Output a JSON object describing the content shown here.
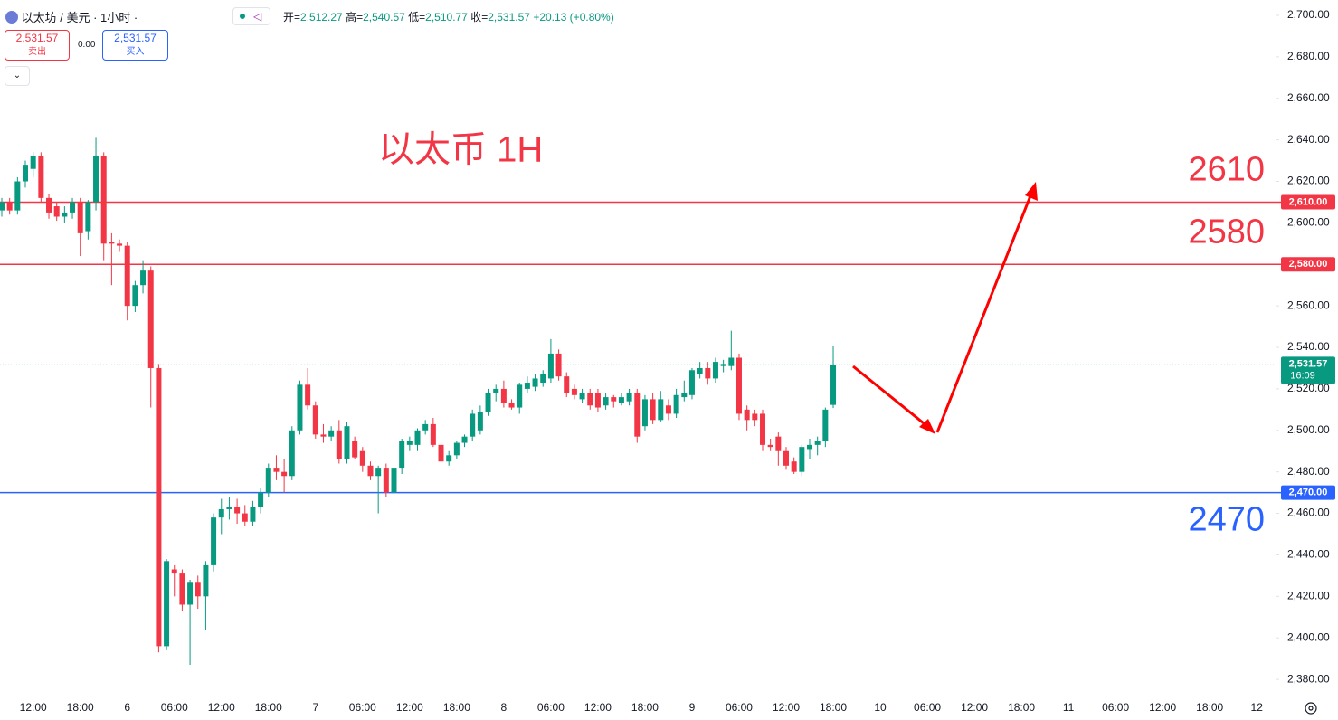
{
  "header": {
    "symbol": "以太坊 / 美元 · 1小时 ·",
    "ohlc": [
      {
        "label": "开=",
        "value": "2,512.27"
      },
      {
        "label": "高=",
        "value": "2,540.57"
      },
      {
        "label": "低=",
        "value": "2,510.77"
      },
      {
        "label": "收=",
        "value": "2,531.57"
      }
    ],
    "change": "+20.13 (+0.80%)",
    "sell": {
      "price": "2,531.57",
      "label": "卖出"
    },
    "spread": "0.00",
    "buy": {
      "price": "2,531.57",
      "label": "买入"
    }
  },
  "chart_data": {
    "type": "candlestick",
    "annotation": "以太币 1H",
    "up_color": "#089981",
    "down_color": "#f23645",
    "categories": [
      null,
      null,
      null,
      null,
      "12:00",
      null,
      null,
      null,
      null,
      null,
      "18:00",
      null,
      null,
      null,
      null,
      null,
      "6",
      null,
      null,
      null,
      null,
      null,
      "06:00",
      null,
      null,
      null,
      null,
      null,
      "12:00",
      null,
      null,
      null,
      null,
      null,
      "18:00",
      null,
      null,
      null,
      null,
      null,
      "7",
      null,
      null,
      null,
      null,
      null,
      "06:00",
      null,
      null,
      null,
      null,
      null,
      "12:00",
      null,
      null,
      null,
      null,
      null,
      "18:00",
      null,
      null,
      null,
      null,
      null,
      "8",
      null,
      null,
      null,
      null,
      null,
      "06:00",
      null,
      null,
      null,
      null,
      null,
      "12:00",
      null,
      null,
      null,
      null,
      null,
      "18:00",
      null,
      null,
      null,
      null,
      null,
      "9",
      null,
      null,
      null,
      null,
      null,
      "06:00",
      null,
      null,
      null,
      null,
      null,
      "12:00",
      null,
      null,
      null,
      null,
      null,
      "18:00",
      null,
      null,
      null,
      null,
      null,
      "10",
      null,
      null,
      null,
      null,
      null,
      "06:00",
      null,
      null,
      null,
      null,
      null,
      "12:00",
      null,
      null,
      null,
      null,
      null,
      "18:00",
      null,
      null,
      null,
      null,
      null,
      "11",
      null,
      null,
      null,
      null,
      null,
      "06:00",
      null,
      null,
      null,
      null,
      null,
      "12:00",
      null,
      null,
      null,
      null,
      null,
      "18:00",
      null,
      null,
      null,
      null,
      null,
      "12"
    ],
    "open": [
      2606,
      2610,
      2606,
      2620,
      2626,
      2632,
      2612,
      2608,
      2603,
      2605,
      2610,
      2596,
      2610,
      2632,
      2591,
      2590,
      2589,
      2560,
      2570,
      2577,
      2530,
      2396,
      2433,
      2431,
      2416,
      2427,
      2420,
      2435,
      2458,
      2462,
      2463,
      2460,
      2456,
      2463,
      2470,
      2482,
      2480,
      2478,
      2500,
      2522,
      2512,
      2498,
      2497,
      2500,
      2486,
      2495,
      2490,
      2483,
      2478,
      2482,
      2470,
      2482,
      2493,
      2493,
      2500,
      2503,
      2493,
      2485,
      2488,
      2494,
      2497,
      2500,
      2509,
      2518,
      2520,
      2513,
      2511,
      2520,
      2521,
      2523,
      2525,
      2537,
      2526,
      2520,
      2515,
      2518,
      2518,
      2512,
      2516,
      2513,
      2514,
      2518,
      2502,
      2515,
      2505,
      2512,
      2508,
      2516,
      2517,
      2527,
      2530,
      2525,
      2531,
      2531,
      2535,
      2510,
      2508,
      2508,
      2493,
      2497,
      2490,
      2485,
      2480,
      2491,
      2493,
      2495,
      2512.27,
      null,
      null,
      null,
      null,
      null,
      null,
      null,
      null,
      null,
      null,
      null,
      null,
      null,
      null,
      null,
      null,
      null,
      null,
      null,
      null,
      null,
      null,
      null,
      null,
      null,
      null,
      null,
      null,
      null,
      null,
      null,
      null,
      null,
      null,
      null,
      null,
      null,
      null,
      null,
      null,
      null,
      null,
      null,
      null,
      null,
      null,
      null,
      null,
      null,
      null,
      null,
      null,
      null,
      null
    ],
    "high": [
      2612,
      2612,
      2622,
      2630,
      2634,
      2634,
      2614,
      2610,
      2608,
      2612,
      2612,
      2611,
      2641,
      2634,
      2595,
      2592,
      2591,
      2572,
      2582,
      2579,
      2532,
      2438,
      2435,
      2433,
      2428,
      2430,
      2437,
      2460,
      2467,
      2468,
      2467,
      2464,
      2466,
      2472,
      2484,
      2488,
      2486,
      2502,
      2524,
      2530,
      2514,
      2503,
      2502,
      2505,
      2504,
      2497,
      2492,
      2485,
      2483,
      2484,
      2484,
      2496,
      2497,
      2501,
      2505,
      2506,
      2496,
      2490,
      2495,
      2498,
      2510,
      2512,
      2520,
      2522,
      2524,
      2515,
      2523,
      2526,
      2527,
      2529,
      2544,
      2539,
      2528,
      2522,
      2520,
      2520,
      2520,
      2518,
      2517,
      2518,
      2520,
      2520,
      2517,
      2518,
      2519,
      2515,
      2520,
      2524,
      2530,
      2533,
      2533,
      2535,
      2534,
      2548,
      2537,
      2512,
      2510,
      2510,
      2496,
      2499,
      2492,
      2487,
      2493,
      2496,
      2497,
      2511,
      2540.57,
      null,
      null,
      null,
      null,
      null,
      null,
      null,
      null,
      null,
      null,
      null,
      null,
      null,
      null,
      null,
      null,
      null,
      null,
      null,
      null,
      null,
      null,
      null,
      null,
      null,
      null,
      null,
      null,
      null,
      null,
      null,
      null,
      null,
      null,
      null,
      null,
      null,
      null,
      null,
      null,
      null,
      null,
      null,
      null,
      null,
      null,
      null,
      null,
      null,
      null,
      null,
      null,
      null,
      null
    ],
    "low": [
      2603,
      2604,
      2604,
      2617,
      2622,
      2610,
      2602,
      2601,
      2600,
      2602,
      2584,
      2592,
      2606,
      2582,
      2570,
      2586,
      2553,
      2557,
      2566,
      2511,
      2393,
      2394,
      2420,
      2413,
      2387,
      2414,
      2404,
      2432,
      2450,
      2457,
      2455,
      2454,
      2454,
      2460,
      2468,
      2476,
      2470,
      2476,
      2498,
      2510,
      2496,
      2494,
      2495,
      2484,
      2484,
      2486,
      2480,
      2476,
      2460,
      2468,
      2469,
      2479,
      2490,
      2490,
      2498,
      2492,
      2484,
      2483,
      2486,
      2492,
      2495,
      2498,
      2507,
      2514,
      2511,
      2510,
      2508,
      2518,
      2519,
      2521,
      2523,
      2524,
      2516,
      2515,
      2513,
      2510,
      2509,
      2510,
      2511,
      2512,
      2512,
      2494,
      2500,
      2503,
      2504,
      2505,
      2506,
      2514,
      2515,
      2525,
      2522,
      2523,
      2528,
      2529,
      2505,
      2500,
      2502,
      2490,
      2490,
      2483,
      2481,
      2479,
      2478,
      2486,
      2488,
      2492,
      2510.77,
      null,
      null,
      null,
      null,
      null,
      null,
      null,
      null,
      null,
      null,
      null,
      null,
      null,
      null,
      null,
      null,
      null,
      null,
      null,
      null,
      null,
      null,
      null,
      null,
      null,
      null,
      null,
      null,
      null,
      null,
      null,
      null,
      null,
      null,
      null,
      null,
      null,
      null,
      null,
      null,
      null,
      null,
      null,
      null,
      null,
      null,
      null,
      null,
      null,
      null,
      null,
      null,
      null,
      null
    ],
    "close": [
      2610,
      2606,
      2620,
      2628,
      2632,
      2612,
      2605,
      2603,
      2605,
      2610,
      2595,
      2610,
      2632,
      2590,
      2590,
      2589,
      2560,
      2570,
      2577,
      2530,
      2396,
      2437,
      2431,
      2416,
      2427,
      2420,
      2435,
      2458,
      2462,
      2463,
      2460,
      2456,
      2463,
      2470,
      2482,
      2480,
      2478,
      2500,
      2522,
      2512,
      2498,
      2497,
      2500,
      2486,
      2502,
      2487,
      2483,
      2478,
      2482,
      2470,
      2482,
      2495,
      2495,
      2500,
      2503,
      2493,
      2485,
      2488,
      2494,
      2497,
      2508,
      2509,
      2518,
      2520,
      2513,
      2511,
      2522,
      2523,
      2525,
      2527,
      2537,
      2526,
      2518,
      2517,
      2518,
      2512,
      2511,
      2516,
      2514,
      2516,
      2518,
      2497,
      2515,
      2505,
      2515,
      2508,
      2517,
      2518,
      2529,
      2530,
      2525,
      2533,
      2532,
      2535,
      2508,
      2505,
      2505,
      2493,
      2492,
      2490,
      2483,
      2480,
      2492,
      2493,
      2495,
      2510,
      2531.57,
      null,
      null,
      null,
      null,
      null,
      null,
      null,
      null,
      null,
      null,
      null,
      null,
      null,
      null,
      null,
      null,
      null,
      null,
      null,
      null,
      null,
      null,
      null,
      null,
      null,
      null,
      null,
      null,
      null,
      null,
      null,
      null,
      null,
      null,
      null,
      null,
      null,
      null,
      null,
      null,
      null,
      null,
      null,
      null,
      null,
      null,
      null,
      null,
      null,
      null,
      null,
      null,
      null,
      null
    ],
    "ylim": [
      2373.5,
      2707.4
    ],
    "yticks": [
      {
        "value": 2380,
        "label": "2,380.00"
      },
      {
        "value": 2400,
        "label": "2,400.00"
      },
      {
        "value": 2420,
        "label": "2,420.00"
      },
      {
        "value": 2440,
        "label": "2,440.00"
      },
      {
        "value": 2460,
        "label": "2,460.00"
      },
      {
        "value": 2480,
        "label": "2,480.00"
      },
      {
        "value": 2500,
        "label": "2,500.00"
      },
      {
        "value": 2520,
        "label": "2,520.00"
      },
      {
        "value": 2540,
        "label": "2,540.00"
      },
      {
        "value": 2560,
        "label": "2,560.00"
      },
      {
        "value": 2580,
        "label": "2,580.00"
      },
      {
        "value": 2600,
        "label": "2,600.00"
      },
      {
        "value": 2620,
        "label": "2,620.00"
      },
      {
        "value": 2640,
        "label": "2,640.00"
      },
      {
        "value": 2660,
        "label": "2,660.00"
      },
      {
        "value": 2680,
        "label": "2,680.00"
      },
      {
        "value": 2700,
        "label": "2,700.00"
      }
    ],
    "grid": false,
    "levels": [
      {
        "value": 2610,
        "label": "2,610.00",
        "color": "#f23645"
      },
      {
        "value": 2580,
        "label": "2,580.00",
        "color": "#f23645"
      },
      {
        "value": 2470,
        "label": "2,470.00",
        "color": "#2962ff"
      }
    ],
    "last_price": {
      "value": 2531.57,
      "label": "2,531.57",
      "countdown": "16:09",
      "color": "#089981"
    }
  }
}
